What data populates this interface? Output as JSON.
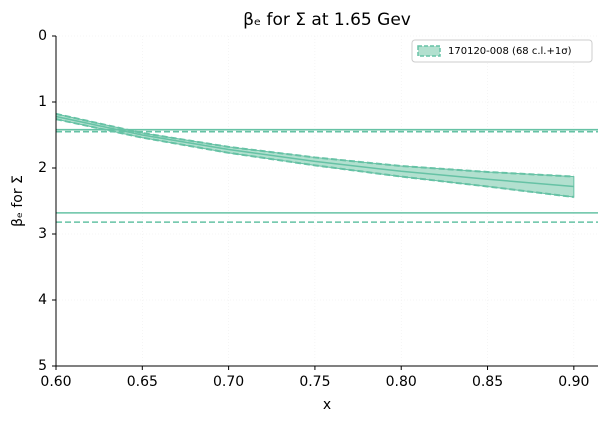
{
  "chart_data": {
    "type": "band",
    "title": "βₑ for Σ at 1.65 Gev",
    "x_label": "x",
    "y_label": "βₑ for Σ",
    "xlim": [
      0.6,
      0.914
    ],
    "ylim": [
      0,
      5
    ],
    "y_inverted": true,
    "grid": true,
    "legend_position": "upper right",
    "xticks": [
      {
        "value": 0.6,
        "label": "0.60"
      },
      {
        "value": 0.65,
        "label": "0.65"
      },
      {
        "value": 0.7,
        "label": "0.70"
      },
      {
        "value": 0.75,
        "label": "0.75"
      },
      {
        "value": 0.8,
        "label": "0.80"
      },
      {
        "value": 0.85,
        "label": "0.85"
      },
      {
        "value": 0.9,
        "label": "0.90"
      }
    ],
    "yticks": [
      0,
      1,
      2,
      3,
      4,
      5
    ],
    "series": [
      {
        "name": "170120-008 (68 c.l.+1σ)",
        "color": "#66c2a5",
        "fill": "#b2e0cf",
        "x": [
          0.6,
          0.65,
          0.7,
          0.75,
          0.8,
          0.85,
          0.9
        ],
        "values": [
          1.22,
          1.5,
          1.72,
          1.9,
          2.05,
          2.17,
          2.28
        ],
        "lower": [
          1.18,
          1.47,
          1.68,
          1.84,
          1.97,
          2.06,
          2.13
        ],
        "upper": [
          1.26,
          1.54,
          1.77,
          1.96,
          2.13,
          2.28,
          2.44
        ]
      }
    ],
    "hlines": [
      {
        "value": 1.42,
        "style": "solid"
      },
      {
        "value": 1.45,
        "style": "dashed"
      },
      {
        "value": 2.68,
        "style": "solid"
      },
      {
        "value": 2.82,
        "style": "dashed"
      }
    ]
  }
}
